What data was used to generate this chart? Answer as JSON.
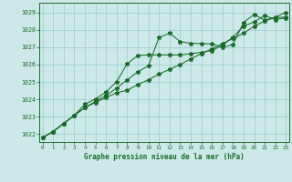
{
  "title": "Graphe pression niveau de la mer (hPa)",
  "bg_color": "#cce8e8",
  "grid_color": "#99cccc",
  "line_color": "#1a6b2a",
  "xlim": [
    -0.3,
    23.3
  ],
  "ylim": [
    1021.55,
    1029.55
  ],
  "yticks": [
    1022,
    1023,
    1024,
    1025,
    1026,
    1027,
    1028,
    1029
  ],
  "xticks": [
    0,
    1,
    2,
    3,
    4,
    5,
    6,
    7,
    8,
    9,
    10,
    11,
    12,
    13,
    14,
    15,
    16,
    17,
    18,
    19,
    20,
    21,
    22,
    23
  ],
  "series1_y": [
    1021.8,
    1022.15,
    1022.62,
    1023.08,
    1023.52,
    1023.88,
    1024.22,
    1024.65,
    1025.12,
    1025.58,
    1025.92,
    1027.55,
    1027.8,
    1027.32,
    1027.22,
    1027.2,
    1027.18,
    1026.98,
    1027.15,
    1028.42,
    1028.88,
    1028.55,
    1028.72,
    1029.0
  ],
  "series2_y": [
    1021.8,
    1022.15,
    1022.62,
    1023.08,
    1023.72,
    1024.02,
    1024.42,
    1025.02,
    1026.05,
    1026.52,
    1026.55,
    1026.55,
    1026.55,
    1026.55,
    1026.62,
    1026.7,
    1026.8,
    1027.1,
    1027.58,
    1028.2,
    1028.45,
    1028.82,
    1028.58,
    1028.68
  ],
  "series3_y": [
    1021.8,
    1022.15,
    1022.62,
    1023.08,
    1023.52,
    1023.82,
    1024.1,
    1024.38,
    1024.52,
    1024.85,
    1025.12,
    1025.45,
    1025.72,
    1026.0,
    1026.32,
    1026.62,
    1026.9,
    1027.2,
    1027.5,
    1027.8,
    1028.2,
    1028.5,
    1028.7,
    1028.72
  ]
}
